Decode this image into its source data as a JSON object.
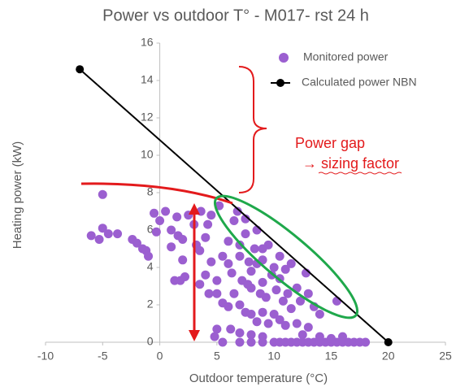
{
  "chart_data": {
    "type": "scatter",
    "title": "Power vs outdoor T° - M017- rst 24 h",
    "x_label": "Outdoor temperature (°C)",
    "y_label": "Heating power (kW)",
    "annotations": [
      "Power gap",
      "→ sizing factor"
    ],
    "xlim": [
      -10,
      25
    ],
    "xticks": [
      -10,
      -5,
      0,
      5,
      10,
      15,
      20,
      25
    ],
    "ylim": [
      0,
      16
    ],
    "yticks": [
      0,
      2,
      4,
      6,
      8,
      10,
      12,
      14,
      16
    ],
    "grid": false,
    "legend": "upper right",
    "series": [
      {
        "name": "Monitored power",
        "type": "scatter",
        "color": "#9b5fd0",
        "x": [
          -5,
          -6,
          -5.3,
          -5,
          -4.5,
          -3.7,
          -2.4,
          -2,
          -1.5,
          -1.2,
          -1,
          -0.5,
          -0.3,
          0,
          0.5,
          1,
          1,
          1.5,
          1.6,
          2,
          2,
          2.5,
          3,
          3.2,
          3.5,
          4,
          4.5,
          1.3,
          1.8,
          2.2,
          3.5,
          4,
          4.5,
          5,
          5.2,
          5.5,
          6,
          6,
          6.3,
          6.5,
          7,
          7,
          7.2,
          7.5,
          7.8,
          8,
          8,
          8.3,
          8.5,
          9,
          9,
          9.3,
          9.5,
          9.8,
          10,
          10.2,
          10.5,
          10.8,
          11,
          11.2,
          11.5,
          12,
          12.3,
          12.8,
          13,
          13.5,
          14,
          15.5,
          4.3,
          5,
          5.5,
          6,
          6.5,
          7,
          7.5,
          8,
          8.5,
          9,
          9.5,
          10,
          10.5,
          11,
          12,
          13,
          6.2,
          7,
          8,
          9,
          5,
          4.8,
          5.5,
          7,
          8,
          9,
          10,
          10.5,
          11,
          11.5,
          12,
          12.5,
          13,
          13.5,
          14,
          14.5,
          15,
          15.5,
          16,
          16.5,
          17,
          17.5,
          18,
          12.5,
          14,
          15,
          16,
          3.6,
          4.2,
          6.8,
          7.5,
          8.5,
          9,
          10.5,
          11.5,
          7.7,
          8.8
        ],
        "values": [
          7.9,
          5.7,
          5.5,
          6.1,
          5.8,
          5.8,
          5.5,
          5.3,
          5.0,
          4.9,
          4.6,
          6.9,
          5.9,
          6.5,
          7.0,
          6.0,
          5.1,
          6.7,
          5.7,
          5.5,
          4.4,
          6.8,
          6.3,
          5.2,
          4.9,
          5.6,
          6.8,
          3.3,
          3.3,
          3.5,
          3.1,
          3.6,
          4.3,
          3.3,
          7.3,
          4.6,
          5.4,
          4.2,
          3.7,
          6.5,
          5.2,
          4.6,
          3.3,
          5.8,
          4.3,
          3.8,
          2.9,
          5.0,
          4.2,
          4.4,
          3.2,
          2.4,
          5.2,
          3.6,
          4.0,
          2.8,
          3.4,
          2.2,
          3.9,
          2.6,
          1.8,
          2.9,
          2.2,
          3.7,
          2.6,
          1.9,
          1.5,
          2.2,
          2.6,
          2.6,
          2.1,
          1.9,
          2.6,
          2.0,
          1.6,
          1.5,
          1.1,
          1.6,
          1.0,
          1.5,
          1.2,
          0.9,
          1.0,
          0.8,
          0.7,
          0.5,
          0.4,
          0.3,
          0.7,
          0.3,
          0,
          0,
          0,
          0,
          0,
          0,
          0,
          0,
          0,
          0,
          0,
          0,
          0,
          0,
          0,
          0,
          0,
          0,
          0,
          0,
          0,
          0.4,
          0.3,
          0.2,
          0.3,
          7.0,
          6.3,
          7.0,
          6.6,
          6.0,
          5.0,
          4.6,
          4.2,
          3.1,
          2.6
        ]
      },
      {
        "name": "Calculated power NBN",
        "type": "line",
        "color": "#000000",
        "x": [
          -7,
          20
        ],
        "values": [
          14.6,
          0
        ]
      }
    ]
  }
}
